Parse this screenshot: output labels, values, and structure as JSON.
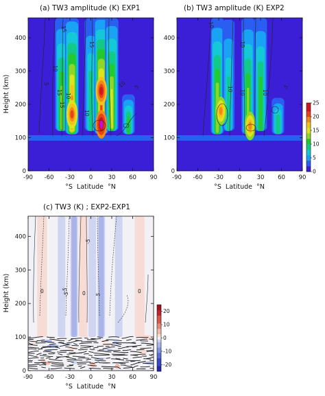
{
  "chart_data": [
    {
      "type": "heatmap",
      "panel": "a",
      "title": "(a) TW3 amplitude (K) EXP1",
      "xlabel": "°S  Latitude  °N",
      "ylabel": "Height (km)",
      "xlim": [
        -90,
        90
      ],
      "ylim": [
        0,
        460
      ],
      "xticks": [
        "-90",
        "-60",
        "-30",
        "0",
        "30",
        "60",
        "90"
      ],
      "yticks": [
        "0",
        "100",
        "200",
        "300",
        "400"
      ],
      "contour_labels": [
        "15",
        "15",
        "15",
        "10",
        "10",
        "10",
        "10",
        "15",
        "5",
        "5"
      ],
      "features": [
        {
          "lat": -42,
          "hmin": 120,
          "hmax": 460,
          "peak": 12
        },
        {
          "lat": -27,
          "hmin": 110,
          "hmax": 460,
          "peak": 18
        },
        {
          "lat": 0,
          "hmin": 120,
          "hmax": 460,
          "peak": 9
        },
        {
          "lat": 15,
          "hmin": 110,
          "hmax": 460,
          "peak": 20
        },
        {
          "lat": 30,
          "hmin": 120,
          "hmax": 460,
          "peak": 14
        },
        {
          "lat": 54,
          "hmin": 110,
          "hmax": 230,
          "peak": 10
        }
      ],
      "maxima": [
        {
          "lat": 15,
          "height": 140,
          "value": 25
        },
        {
          "lat": 15,
          "height": 240,
          "value": 22
        },
        {
          "lat": -27,
          "height": 170,
          "value": 20
        }
      ]
    },
    {
      "type": "heatmap",
      "panel": "b",
      "title": "(b) TW3 amplitude (K) EXP2",
      "xlabel": "°S  Latitude  °N",
      "ylabel": "",
      "xlim": [
        -90,
        90
      ],
      "ylim": [
        0,
        460
      ],
      "xticks": [
        "-90",
        "-60",
        "-30",
        "0",
        "30",
        "60",
        "90"
      ],
      "yticks": [
        "0",
        "100",
        "200",
        "300",
        "400"
      ],
      "contour_labels": [
        "10",
        "10",
        "10",
        "10",
        "10",
        "5"
      ],
      "colorbar": {
        "ticks": [
          "0",
          "5",
          "10",
          "15",
          "20",
          "25"
        ],
        "min": 0,
        "max": 25
      },
      "features": [
        {
          "lat": -32,
          "hmin": 110,
          "hmax": 460,
          "peak": 13
        },
        {
          "lat": -16,
          "hmin": 120,
          "hmax": 460,
          "peak": 8
        },
        {
          "lat": 12,
          "hmin": 110,
          "hmax": 460,
          "peak": 12
        },
        {
          "lat": 30,
          "hmin": 120,
          "hmax": 460,
          "peak": 11
        },
        {
          "lat": 55,
          "hmin": 110,
          "hmax": 220,
          "peak": 9
        }
      ],
      "maxima": [
        {
          "lat": -27,
          "height": 180,
          "value": 18
        },
        {
          "lat": 15,
          "height": 135,
          "value": 18
        }
      ]
    },
    {
      "type": "heatmap",
      "panel": "c",
      "title": "(c) TW3 (K) ; EXP2-EXP1",
      "xlabel": "°S  Latitude  °N",
      "ylabel": "Height (km)",
      "xlim": [
        -90,
        90
      ],
      "ylim": [
        0,
        460
      ],
      "xticks": [
        "-90",
        "-60",
        "-30",
        "0",
        "30",
        "60",
        "90"
      ],
      "yticks": [
        "0",
        "100",
        "200",
        "300",
        "400"
      ],
      "contour_labels": [
        "0",
        "-5",
        "0",
        "5",
        "-5",
        "0",
        "-5"
      ],
      "colorbar": {
        "ticks": [
          "-20",
          "-10",
          "0",
          "10",
          "20"
        ],
        "min": -25,
        "max": 25
      },
      "features": [
        {
          "lat": -70,
          "hmin": 100,
          "hmax": 460,
          "value": 1
        },
        {
          "lat": -42,
          "hmin": 100,
          "hmax": 460,
          "value": -3
        },
        {
          "lat": -24,
          "hmin": 100,
          "hmax": 460,
          "value": -5
        },
        {
          "lat": -10,
          "hmin": 100,
          "hmax": 460,
          "value": 2
        },
        {
          "lat": 2,
          "hmin": 100,
          "hmax": 460,
          "value": -3
        },
        {
          "lat": 15,
          "hmin": 100,
          "hmax": 460,
          "value": -6
        },
        {
          "lat": 40,
          "hmin": 100,
          "hmax": 460,
          "value": -3
        },
        {
          "lat": 70,
          "hmin": 100,
          "hmax": 460,
          "value": 1
        }
      ]
    }
  ]
}
